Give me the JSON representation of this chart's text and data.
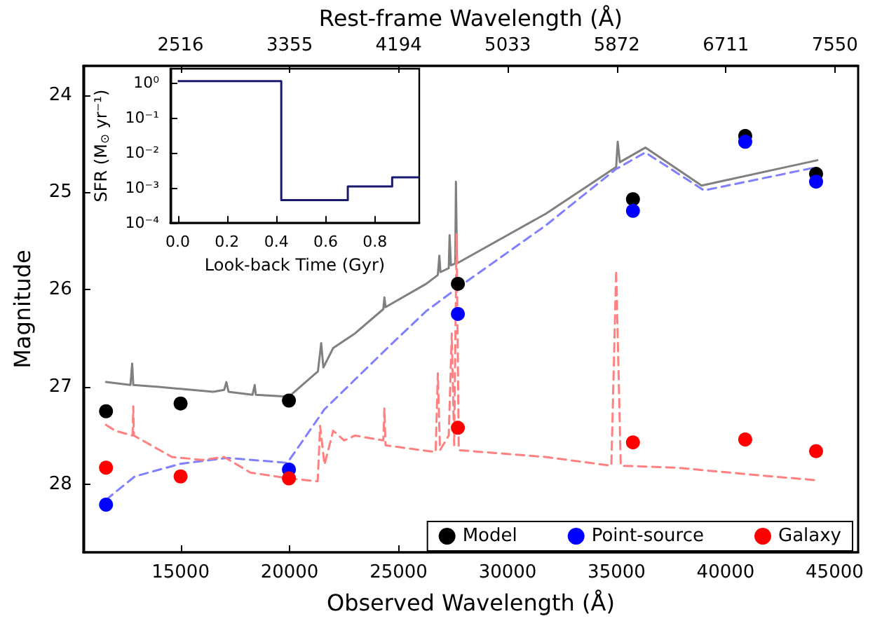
{
  "chart_data": [
    {
      "type": "scatter",
      "xlabel": "Observed Wavelength (Å)",
      "ylabel": "Magnitude",
      "x2label": "Rest-frame Wavelength (Å)",
      "xlim": [
        10540,
        46080
      ],
      "xticks": [
        15000,
        20000,
        25000,
        30000,
        35000,
        40000,
        45000
      ],
      "x2lim": [
        1768,
        7729
      ],
      "x2ticks": [
        2516,
        3355,
        4194,
        5033,
        5872,
        6711,
        7550
      ],
      "ylim": [
        28.7,
        23.7
      ],
      "yticks": [
        24,
        25,
        26,
        27,
        28
      ],
      "grid": false,
      "legend": "bottom right",
      "marker": "circle",
      "series": [
        {
          "type": "line",
          "color": "#808080",
          "line_style": "solid",
          "marker": "none",
          "x": [
            11580,
            12700,
            12780,
            12830,
            14000,
            15000,
            16500,
            17000,
            17100,
            17200,
            18300,
            18400,
            18450,
            19970,
            21300,
            21450,
            21550,
            22000,
            23000,
            24300,
            24350,
            24400,
            26270,
            26800,
            26870,
            26920,
            27300,
            27340,
            27400,
            27600,
            27630,
            27680,
            31750,
            34980,
            35050,
            35150,
            36320,
            38900,
            44210
          ],
          "values": [
            26.95,
            26.98,
            26.76,
            26.98,
            27.0,
            27.02,
            27.05,
            27.03,
            26.95,
            27.05,
            27.08,
            26.98,
            27.08,
            27.1,
            26.84,
            26.55,
            26.8,
            26.6,
            26.45,
            26.2,
            26.08,
            26.18,
            25.94,
            25.85,
            25.65,
            25.82,
            25.78,
            25.44,
            25.75,
            25.73,
            24.89,
            25.73,
            25.22,
            24.74,
            24.48,
            24.69,
            24.54,
            24.93,
            24.67
          ]
        },
        {
          "type": "line",
          "color": "#8080ff",
          "line_style": "dashed",
          "marker": "none",
          "x": [
            11580,
            12900,
            15000,
            17150,
            19900,
            21600,
            24580,
            26270,
            27720,
            31750,
            34980,
            36320,
            39010,
            44210
          ],
          "values": [
            28.16,
            27.92,
            27.79,
            27.73,
            27.78,
            27.23,
            26.58,
            26.22,
            25.98,
            25.34,
            24.76,
            24.59,
            24.98,
            24.74
          ]
        },
        {
          "type": "line",
          "color": "#ff8080",
          "line_style": "dashed",
          "marker": "none",
          "x": [
            11580,
            12000,
            12800,
            12830,
            12860,
            14600,
            16000,
            17000,
            18200,
            19970,
            21290,
            21400,
            21600,
            22000,
            22500,
            23000,
            24300,
            24350,
            24400,
            26700,
            26800,
            26900,
            27300,
            27440,
            27550,
            27660,
            27760,
            31750,
            34760,
            34980,
            35190,
            37740,
            41130,
            44210
          ],
          "values": [
            27.39,
            27.45,
            27.5,
            27.2,
            27.5,
            27.72,
            27.75,
            27.72,
            27.88,
            27.94,
            27.97,
            27.4,
            27.8,
            27.45,
            27.55,
            27.5,
            27.55,
            27.22,
            27.6,
            27.67,
            26.86,
            27.65,
            27.5,
            26.45,
            27.6,
            25.43,
            27.65,
            27.72,
            27.81,
            25.8,
            27.81,
            27.83,
            27.9,
            27.96
          ]
        },
        {
          "name": "Model",
          "color": "#000000",
          "x": [
            11580,
            15000,
            19970,
            27720,
            35750,
            40900,
            44150
          ],
          "values": [
            27.25,
            27.17,
            27.14,
            25.94,
            25.07,
            24.42,
            24.81
          ]
        },
        {
          "name": "Point-source",
          "color": "#0000ff",
          "x": [
            11580,
            15000,
            19970,
            27720,
            35750,
            40900,
            44150
          ],
          "values": [
            28.21,
            null,
            27.85,
            26.25,
            25.19,
            24.48,
            24.89
          ]
        },
        {
          "name": "Galaxy",
          "color": "#ff0000",
          "x": [
            11580,
            15000,
            19970,
            27720,
            35750,
            40900,
            44150
          ],
          "values": [
            27.83,
            27.92,
            27.94,
            27.42,
            27.57,
            27.54,
            27.66
          ]
        }
      ]
    },
    {
      "type": "step",
      "xlabel": "Look-back Time (Gyr)",
      "ylabel": "SFR (M$_{⊙}$ yr⁻¹)",
      "color": "#191970",
      "log": true,
      "x": [
        0,
        0.42,
        0.69,
        0.87,
        0.98
      ],
      "values": [
        1.1,
        0.00045,
        0.0011,
        0.002,
        0.002
      ],
      "xlim": [
        -0.03,
        0.98
      ],
      "xticks": [
        {
          "value": 0,
          "label": "0.0"
        },
        {
          "value": 0.2,
          "label": "0.2"
        },
        {
          "value": 0.4,
          "label": "0.4"
        },
        {
          "value": 0.6,
          "label": "0.6"
        },
        {
          "value": 0.8,
          "label": "0.8"
        }
      ],
      "ylim": [
        0.0001,
        2.5
      ],
      "yticks": [
        {
          "value": 1,
          "label": "10⁰"
        },
        {
          "value": 0.1,
          "label": "10⁻¹"
        },
        {
          "value": 0.01,
          "label": "10⁻²"
        },
        {
          "value": 0.001,
          "label": "10⁻³"
        },
        {
          "value": 0.0001,
          "label": "10⁻⁴"
        }
      ]
    }
  ]
}
